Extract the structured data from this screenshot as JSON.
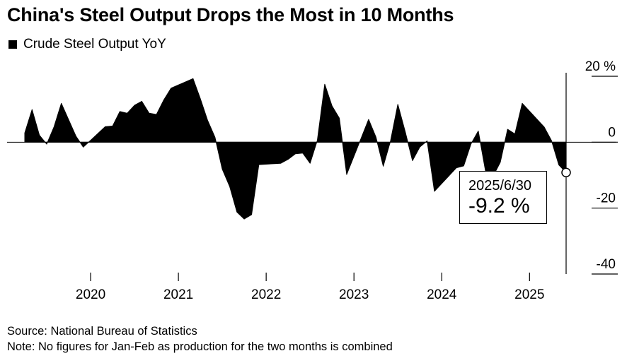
{
  "title": "China's Steel Output Drops the Most in 10 Months",
  "legend": {
    "series_label": "Crude Steel Output YoY"
  },
  "callout": {
    "date": "2025/6/30",
    "value": "-9.2 %"
  },
  "footer": {
    "source": "Source: National Bureau of Statistics",
    "note": "Note: No figures for Jan-Feb as production for the two months is combined"
  },
  "chart_data": {
    "type": "area",
    "title": "China's Steel Output Drops the Most in 10 Months",
    "series": [
      {
        "name": "Crude Steel Output YoY",
        "color": "#000000",
        "points": [
          {
            "x": "2019-04",
            "y": 2.8
          },
          {
            "x": "2019-05",
            "y": 9.9
          },
          {
            "x": "2019-06",
            "y": 2.1
          },
          {
            "x": "2019-07",
            "y": -0.6
          },
          {
            "x": "2019-08",
            "y": 4.7
          },
          {
            "x": "2019-09",
            "y": 11.8
          },
          {
            "x": "2019-10",
            "y": 6.8
          },
          {
            "x": "2019-11",
            "y": 1.8
          },
          {
            "x": "2019-12",
            "y": -1.5
          },
          {
            "x": "2020-03",
            "y": 4.7
          },
          {
            "x": "2020-04",
            "y": 4.9
          },
          {
            "x": "2020-05",
            "y": 9.3
          },
          {
            "x": "2020-06",
            "y": 8.8
          },
          {
            "x": "2020-07",
            "y": 11.2
          },
          {
            "x": "2020-08",
            "y": 12.4
          },
          {
            "x": "2020-09",
            "y": 8.8
          },
          {
            "x": "2020-10",
            "y": 8.4
          },
          {
            "x": "2020-11",
            "y": 12.8
          },
          {
            "x": "2020-12",
            "y": 16.4
          },
          {
            "x": "2021-03",
            "y": 19.3
          },
          {
            "x": "2021-04",
            "y": 13.2
          },
          {
            "x": "2021-05",
            "y": 6.6
          },
          {
            "x": "2021-06",
            "y": 1.5
          },
          {
            "x": "2021-07",
            "y": -8.2
          },
          {
            "x": "2021-08",
            "y": -13.4
          },
          {
            "x": "2021-09",
            "y": -21.2
          },
          {
            "x": "2021-10",
            "y": -23.3
          },
          {
            "x": "2021-11",
            "y": -22.0
          },
          {
            "x": "2021-12",
            "y": -6.8
          },
          {
            "x": "2022-03",
            "y": -6.4
          },
          {
            "x": "2022-04",
            "y": -5.2
          },
          {
            "x": "2022-05",
            "y": -3.5
          },
          {
            "x": "2022-06",
            "y": -3.3
          },
          {
            "x": "2022-07",
            "y": -6.4
          },
          {
            "x": "2022-08",
            "y": 0.6
          },
          {
            "x": "2022-09",
            "y": 17.6
          },
          {
            "x": "2022-10",
            "y": 11.0
          },
          {
            "x": "2022-11",
            "y": 7.3
          },
          {
            "x": "2022-12",
            "y": -9.8
          },
          {
            "x": "2023-03",
            "y": 6.9
          },
          {
            "x": "2023-04",
            "y": 1.6
          },
          {
            "x": "2023-05",
            "y": -7.3
          },
          {
            "x": "2023-06",
            "y": 0.4
          },
          {
            "x": "2023-07",
            "y": 11.5
          },
          {
            "x": "2023-08",
            "y": 3.2
          },
          {
            "x": "2023-09",
            "y": -5.6
          },
          {
            "x": "2023-10",
            "y": -1.5
          },
          {
            "x": "2023-11",
            "y": 0.4
          },
          {
            "x": "2023-12",
            "y": -14.9
          },
          {
            "x": "2024-03",
            "y": -7.8
          },
          {
            "x": "2024-04",
            "y": -7.2
          },
          {
            "x": "2024-05",
            "y": -0.5
          },
          {
            "x": "2024-06",
            "y": 3.4
          },
          {
            "x": "2024-07",
            "y": -9.0
          },
          {
            "x": "2024-08",
            "y": -10.4
          },
          {
            "x": "2024-09",
            "y": -6.1
          },
          {
            "x": "2024-10",
            "y": 3.9
          },
          {
            "x": "2024-11",
            "y": 2.5
          },
          {
            "x": "2024-12",
            "y": 11.8
          },
          {
            "x": "2025-03",
            "y": 4.6
          },
          {
            "x": "2025-04",
            "y": 0.5
          },
          {
            "x": "2025-05",
            "y": -6.9
          },
          {
            "x": "2025-06",
            "y": -9.2
          }
        ]
      }
    ],
    "x_ticks": [
      {
        "value": "2020-01",
        "label": "2020"
      },
      {
        "value": "2021-01",
        "label": "2021"
      },
      {
        "value": "2022-01",
        "label": "2022"
      },
      {
        "value": "2023-01",
        "label": "2023"
      },
      {
        "value": "2024-01",
        "label": "2024"
      },
      {
        "value": "2025-01",
        "label": "2025"
      }
    ],
    "y_ticks": [
      {
        "value": 20,
        "label": "20 %"
      },
      {
        "value": 0,
        "label": "0"
      },
      {
        "value": -20,
        "label": "-20"
      },
      {
        "value": -40,
        "label": "-40"
      }
    ],
    "ylim": [
      -40,
      20
    ],
    "xlim": [
      "2019-04",
      "2025-06"
    ],
    "y_axis_position": "right",
    "grid": false,
    "zero_line": true,
    "legend_position": "top-left"
  }
}
